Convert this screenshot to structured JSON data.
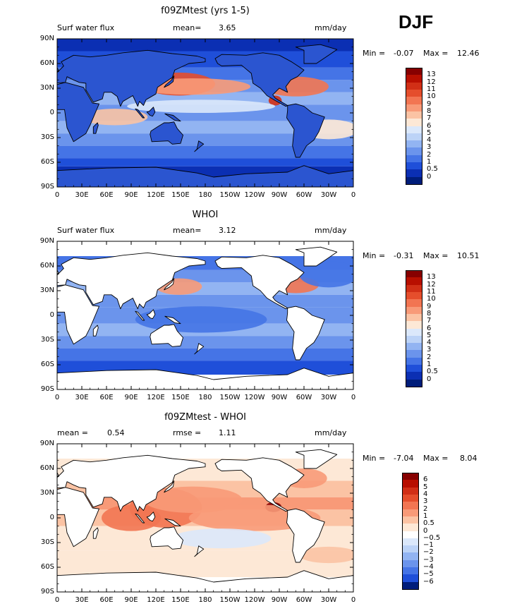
{
  "season": "DJF",
  "panels": [
    {
      "title": "f09ZMtest (yrs 1-5)",
      "left_text": "Surf water flux",
      "mid_label": "mean=",
      "mid_value": "3.65",
      "units": "mm/day",
      "min_label": "Min =",
      "min_value": "-0.07",
      "max_label": "Max =",
      "max_value": "12.46",
      "colorbar": {
        "labels": [
          "13",
          "12",
          "11",
          "10",
          "9",
          "8",
          "7",
          "6",
          "5",
          "4",
          "3",
          "2",
          "1",
          "0.5",
          "0"
        ],
        "colors": [
          "#870000",
          "#b80f00",
          "#d12f16",
          "#e54e2c",
          "#f27552",
          "#f89a78",
          "#fbc3a4",
          "#fde8d6",
          "#dbe8fb",
          "#bcd3f7",
          "#92b4f2",
          "#6b94ec",
          "#4574e6",
          "#1f4fd9",
          "#0b2fb3",
          "#001d7a"
        ]
      }
    },
    {
      "title": "WHOI",
      "left_text": "Surf water flux",
      "mid_label": "mean=",
      "mid_value": "3.12",
      "units": "mm/day",
      "min_label": "Min =",
      "min_value": "-0.31",
      "max_label": "Max =",
      "max_value": "10.51",
      "colorbar": {
        "labels": [
          "13",
          "12",
          "11",
          "10",
          "9",
          "8",
          "7",
          "6",
          "5",
          "4",
          "3",
          "2",
          "1",
          "0.5",
          "0"
        ],
        "colors": [
          "#870000",
          "#b80f00",
          "#d12f16",
          "#e54e2c",
          "#f27552",
          "#f89a78",
          "#fbc3a4",
          "#fde8d6",
          "#dbe8fb",
          "#bcd3f7",
          "#92b4f2",
          "#6b94ec",
          "#4574e6",
          "#1f4fd9",
          "#0b2fb3",
          "#001d7a"
        ]
      }
    },
    {
      "title": "f09ZMtest - WHOI",
      "left_text": "mean =",
      "left_value": "0.54",
      "mid_label": "rmse =",
      "mid_value": "1.11",
      "units": "mm/day",
      "min_label": "Min =",
      "min_value": "-7.04",
      "max_label": "Max =",
      "max_value": "8.04",
      "colorbar": {
        "labels": [
          "6",
          "5",
          "4",
          "3",
          "2",
          "1",
          "0.5",
          "0",
          "-0.5",
          "-1",
          "-2",
          "-3",
          "-4",
          "-5",
          "-6"
        ],
        "colors": [
          "#870000",
          "#b80f00",
          "#d12f16",
          "#e54e2c",
          "#f27552",
          "#f89a78",
          "#fbc3a4",
          "#fde8d6",
          "#ffffff",
          "#dbe8fb",
          "#bcd3f7",
          "#92b4f2",
          "#6b94ec",
          "#4574e6",
          "#1f4fd9",
          "#001d7a"
        ]
      }
    }
  ],
  "axes": {
    "lat_labels": [
      "90N",
      "60N",
      "30N",
      "0",
      "30S",
      "60S",
      "90S"
    ],
    "lon_labels": [
      "0",
      "30E",
      "60E",
      "90E",
      "120E",
      "150E",
      "180",
      "150W",
      "120W",
      "90W",
      "60W",
      "30W",
      "0"
    ]
  },
  "colors": {
    "land_model": "#2b55d0",
    "ocean_model": "#3868e4",
    "land_obs": "#ffffff",
    "ocean_obs": "#5a86ec",
    "land_diff": "#ffffff",
    "ocean_diff": "#fde3d2"
  }
}
